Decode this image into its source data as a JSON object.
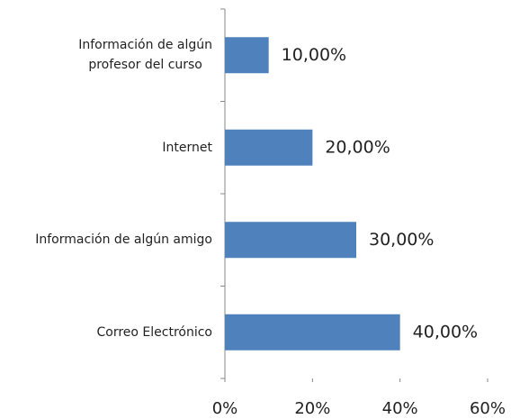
{
  "chart_data": {
    "type": "bar",
    "orientation": "horizontal",
    "categories": [
      "Información de algún\nprofesor del curso",
      "Internet",
      "Información de algún amigo",
      "Correo Electrónico"
    ],
    "values": [
      10,
      20,
      30,
      40
    ],
    "value_labels": [
      "10,00%",
      "20,00%",
      "30,00%",
      "40,00%"
    ],
    "color": "#4f81bd",
    "xlim": [
      0,
      60
    ],
    "xticks": [
      {
        "value": 0,
        "label": "0%"
      },
      {
        "value": 20,
        "label": "20%"
      },
      {
        "value": 40,
        "label": "40%"
      },
      {
        "value": 60,
        "label": "60%"
      }
    ],
    "grid": false
  }
}
